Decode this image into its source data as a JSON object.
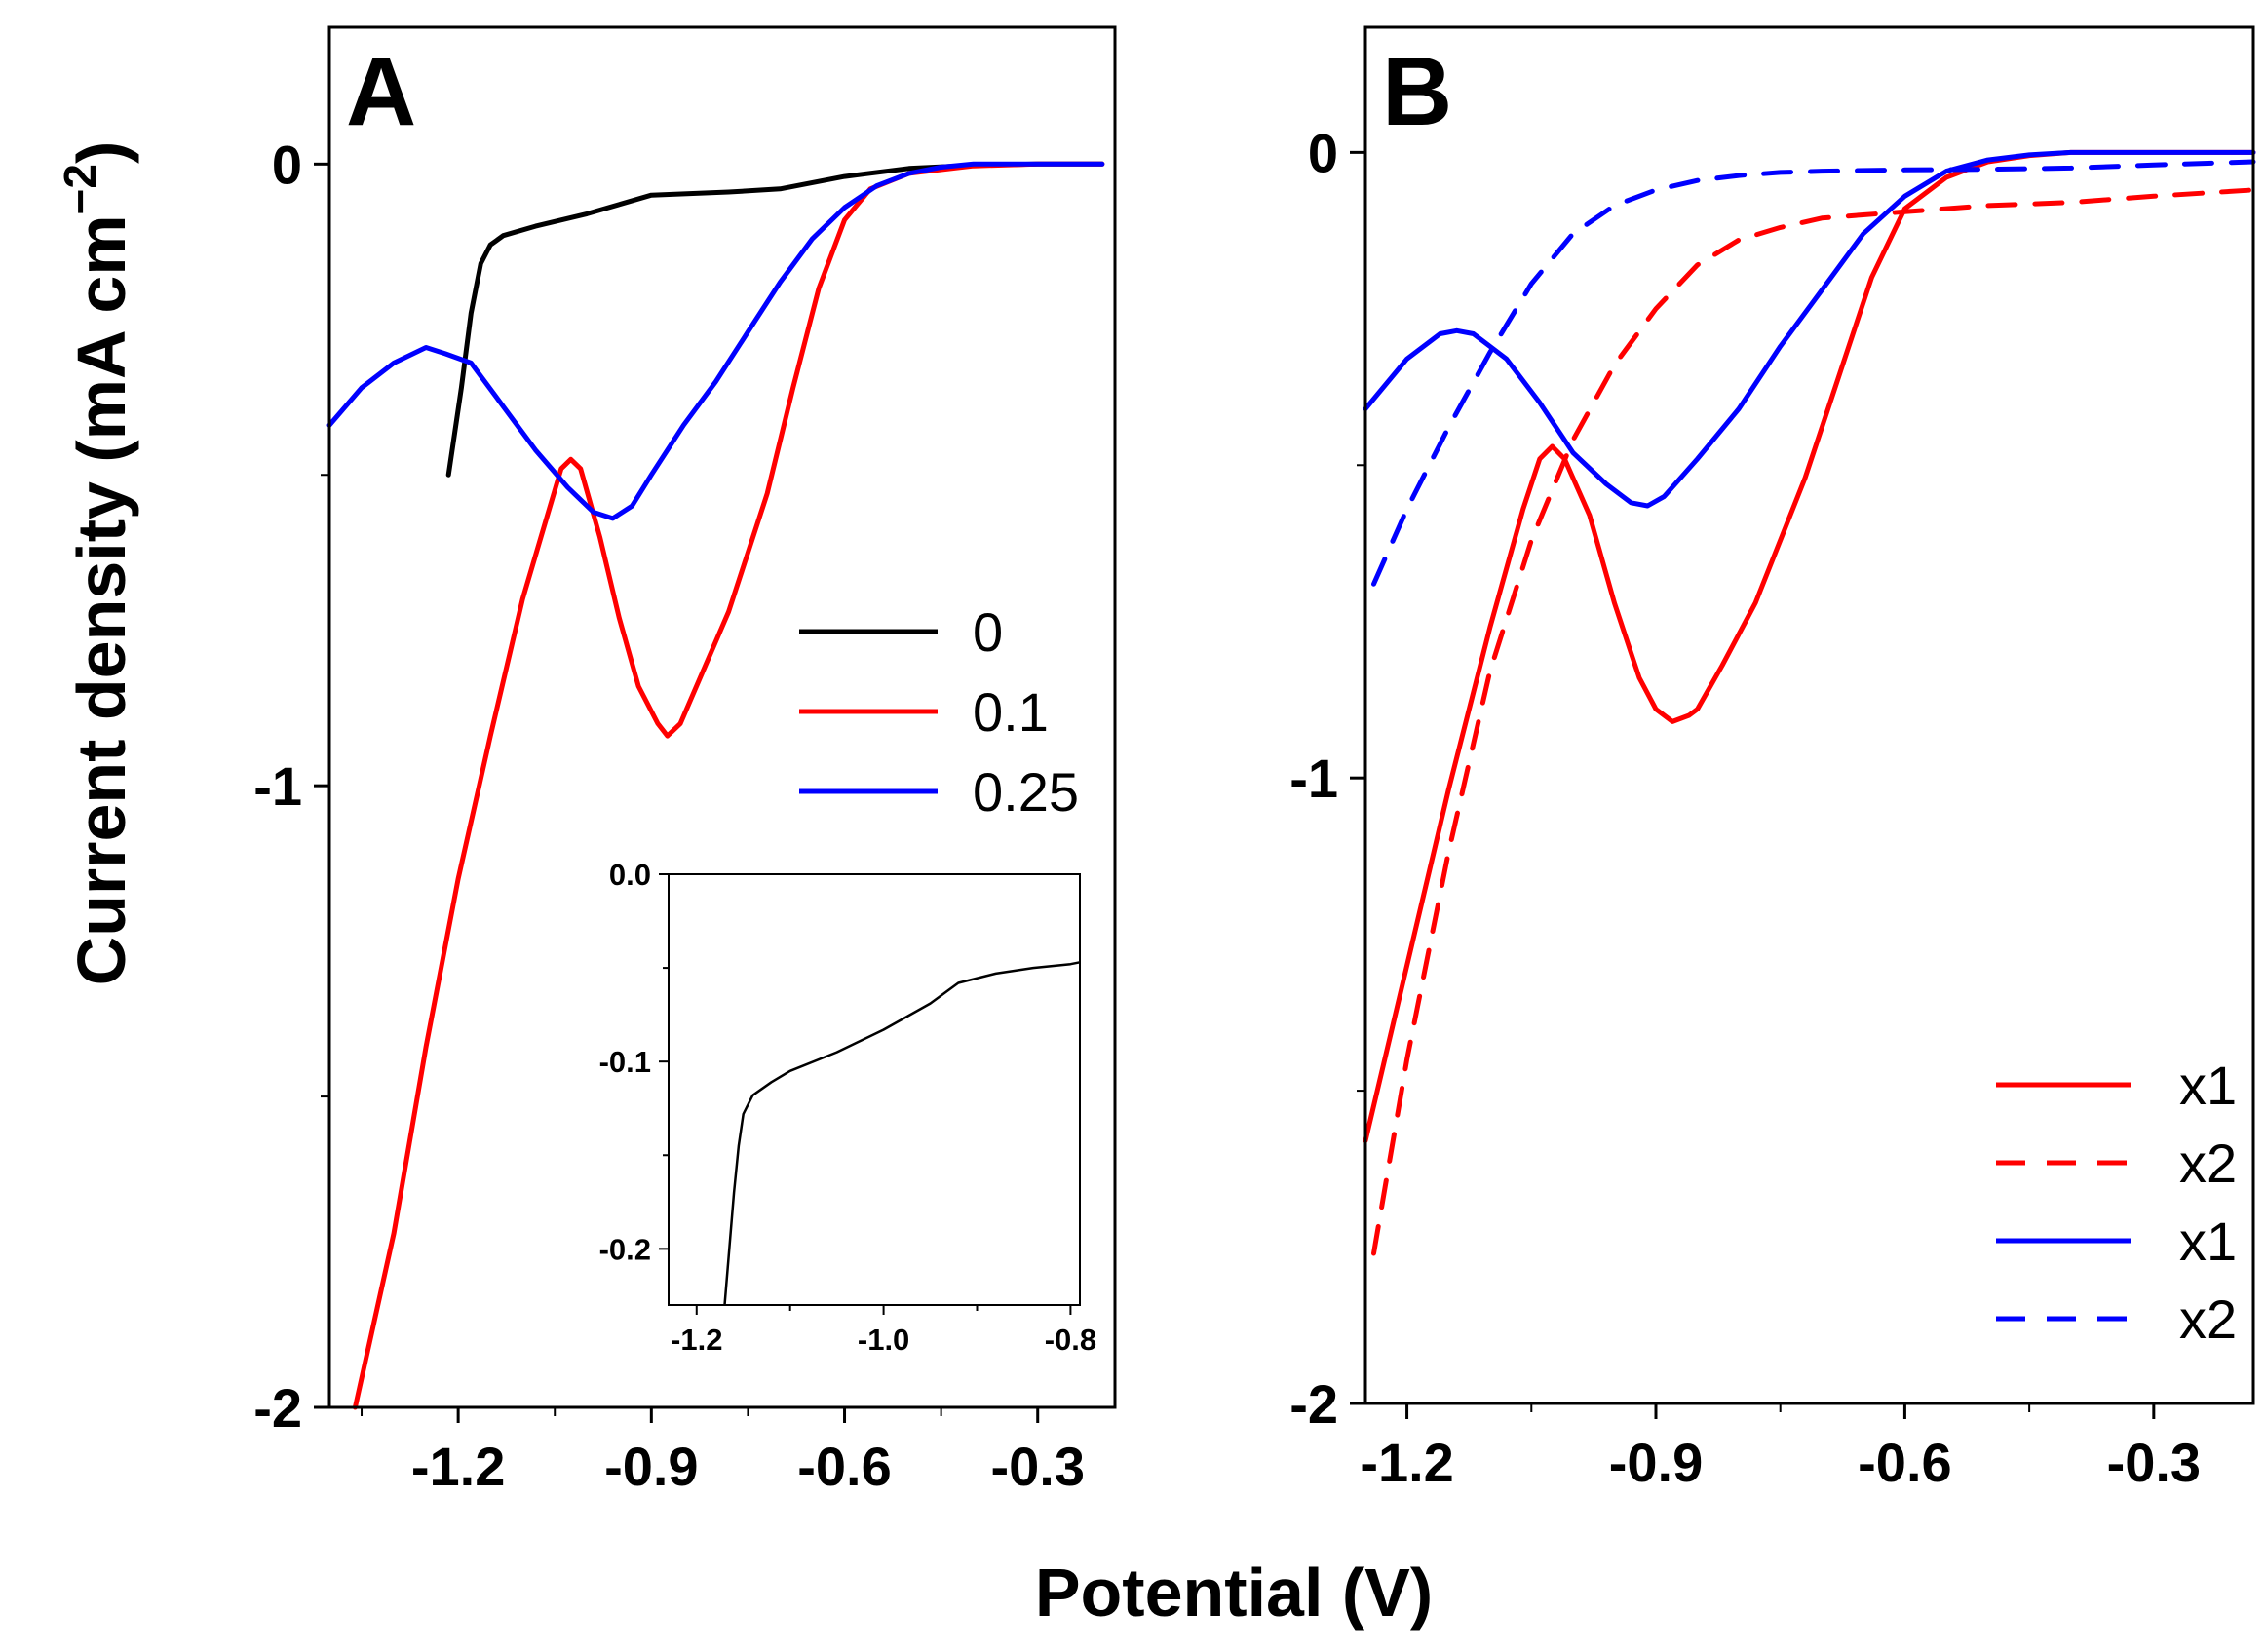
{
  "figure": {
    "xlabel": "Potential (V)",
    "ylabel_main": "Current density (mA cm",
    "ylabel_sup": "−2",
    "ylabel_close": ")"
  },
  "chart_data": [
    {
      "id": "A",
      "type": "line",
      "panel_label": "A",
      "xlim": [
        -1.4,
        -0.18
      ],
      "ylim": [
        -2.0,
        0.22
      ],
      "xticks": [
        -1.2,
        -0.9,
        -0.6,
        -0.3
      ],
      "xtick_labels": [
        "-1.2",
        "-0.9",
        "-0.6",
        "-0.3"
      ],
      "yticks": [
        0,
        -1,
        -2
      ],
      "ytick_labels": [
        "0",
        "-1",
        "-2"
      ],
      "legend": {
        "position": "center-right"
      },
      "series": [
        {
          "name": "0",
          "color": "#000000",
          "dash": "solid",
          "x": [
            -1.215,
            -1.195,
            -1.18,
            -1.165,
            -1.15,
            -1.13,
            -1.08,
            -1.0,
            -0.9,
            -0.78,
            -0.7,
            -0.6,
            -0.5,
            -0.4,
            -0.3,
            -0.2
          ],
          "y": [
            -0.5,
            -0.36,
            -0.24,
            -0.16,
            -0.13,
            -0.115,
            -0.1,
            -0.08,
            -0.05,
            -0.045,
            -0.04,
            -0.02,
            -0.007,
            -0.002,
            0.0,
            0.0
          ]
        },
        {
          "name": "0.1",
          "color": "#ff0000",
          "dash": "solid",
          "x": [
            -1.36,
            -1.3,
            -1.25,
            -1.2,
            -1.15,
            -1.1,
            -1.06,
            -1.04,
            -1.025,
            -1.01,
            -0.98,
            -0.95,
            -0.92,
            -0.89,
            -0.875,
            -0.855,
            -0.83,
            -0.78,
            -0.72,
            -0.68,
            -0.64,
            -0.6,
            -0.56,
            -0.5,
            -0.4,
            -0.3,
            -0.2
          ],
          "y": [
            -2.0,
            -1.72,
            -1.42,
            -1.15,
            -0.92,
            -0.7,
            -0.56,
            -0.49,
            -0.475,
            -0.49,
            -0.6,
            -0.73,
            -0.84,
            -0.9,
            -0.92,
            -0.9,
            -0.84,
            -0.72,
            -0.53,
            -0.36,
            -0.2,
            -0.09,
            -0.04,
            -0.015,
            -0.003,
            0.0,
            0.0
          ]
        },
        {
          "name": "0.25",
          "color": "#0000ff",
          "dash": "solid",
          "x": [
            -1.4,
            -1.35,
            -1.3,
            -1.25,
            -1.22,
            -1.18,
            -1.13,
            -1.08,
            -1.03,
            -0.99,
            -0.96,
            -0.93,
            -0.9,
            -0.85,
            -0.8,
            -0.75,
            -0.7,
            -0.65,
            -0.6,
            -0.55,
            -0.5,
            -0.45,
            -0.4,
            -0.3,
            -0.2
          ],
          "y": [
            -0.42,
            -0.36,
            -0.32,
            -0.295,
            -0.305,
            -0.32,
            -0.39,
            -0.46,
            -0.52,
            -0.56,
            -0.57,
            -0.55,
            -0.5,
            -0.42,
            -0.35,
            -0.27,
            -0.19,
            -0.12,
            -0.07,
            -0.035,
            -0.015,
            -0.005,
            0.0,
            0.0,
            0.0
          ]
        }
      ],
      "inset": {
        "xlim": [
          -1.23,
          -0.79
        ],
        "ylim": [
          -0.23,
          0.0
        ],
        "xticks": [
          -1.2,
          -1.0,
          -0.8
        ],
        "xtick_labels": [
          "-1.2",
          "-1.0",
          "-0.8"
        ],
        "yticks": [
          0.0,
          -0.1,
          -0.2
        ],
        "ytick_labels": [
          "0.0",
          "-0.1",
          "-0.2"
        ],
        "series": [
          {
            "name": "0",
            "color": "#000000",
            "x": [
              -1.17,
              -1.165,
              -1.16,
              -1.155,
              -1.15,
              -1.14,
              -1.12,
              -1.1,
              -1.05,
              -1.0,
              -0.95,
              -0.92,
              -0.88,
              -0.84,
              -0.8,
              -0.79
            ],
            "y": [
              -0.23,
              -0.2,
              -0.17,
              -0.145,
              -0.128,
              -0.118,
              -0.111,
              -0.105,
              -0.095,
              -0.083,
              -0.069,
              -0.058,
              -0.053,
              -0.05,
              -0.048,
              -0.047
            ]
          }
        ]
      }
    },
    {
      "id": "B",
      "type": "line",
      "panel_label": "B",
      "xlim": [
        -1.25,
        -0.18
      ],
      "ylim": [
        -2.0,
        0.2
      ],
      "xticks": [
        -1.2,
        -0.9,
        -0.6,
        -0.3
      ],
      "xtick_labels": [
        "-1.2",
        "-0.9",
        "-0.6",
        "-0.3"
      ],
      "yticks": [
        0,
        -1,
        -2
      ],
      "ytick_labels": [
        "0",
        "-1",
        "-2"
      ],
      "legend": {
        "position": "bottom-right"
      },
      "series": [
        {
          "name": "x1",
          "color": "#ff0000",
          "dash": "solid",
          "x": [
            -1.25,
            -1.2,
            -1.15,
            -1.1,
            -1.06,
            -1.04,
            -1.025,
            -1.01,
            -0.98,
            -0.95,
            -0.92,
            -0.9,
            -0.88,
            -0.86,
            -0.85,
            -0.82,
            -0.78,
            -0.72,
            -0.68,
            -0.64,
            -0.6,
            -0.55,
            -0.5,
            -0.45,
            -0.4,
            -0.3,
            -0.18
          ],
          "y": [
            -1.58,
            -1.3,
            -1.02,
            -0.76,
            -0.57,
            -0.49,
            -0.47,
            -0.49,
            -0.58,
            -0.72,
            -0.84,
            -0.89,
            -0.91,
            -0.9,
            -0.89,
            -0.82,
            -0.72,
            -0.52,
            -0.36,
            -0.2,
            -0.09,
            -0.04,
            -0.015,
            -0.005,
            0.0,
            0.0,
            0.0
          ]
        },
        {
          "name": "x2",
          "color": "#ff0000",
          "dash": "dashed",
          "x": [
            -1.24,
            -1.2,
            -1.15,
            -1.1,
            -1.05,
            -1.0,
            -0.95,
            -0.9,
            -0.85,
            -0.8,
            -0.75,
            -0.7,
            -0.65,
            -0.6,
            -0.55,
            -0.5,
            -0.4,
            -0.3,
            -0.18
          ],
          "y": [
            -1.76,
            -1.45,
            -1.12,
            -0.83,
            -0.62,
            -0.46,
            -0.34,
            -0.25,
            -0.18,
            -0.14,
            -0.12,
            -0.105,
            -0.1,
            -0.095,
            -0.09,
            -0.085,
            -0.08,
            -0.07,
            -0.06
          ]
        },
        {
          "name": "x1",
          "color": "#0000ff",
          "dash": "solid",
          "x": [
            -1.25,
            -1.2,
            -1.16,
            -1.14,
            -1.12,
            -1.08,
            -1.04,
            -1.0,
            -0.96,
            -0.93,
            -0.91,
            -0.89,
            -0.85,
            -0.8,
            -0.75,
            -0.7,
            -0.65,
            -0.6,
            -0.55,
            -0.5,
            -0.45,
            -0.4,
            -0.3,
            -0.18
          ],
          "y": [
            -0.41,
            -0.33,
            -0.29,
            -0.285,
            -0.29,
            -0.33,
            -0.4,
            -0.48,
            -0.53,
            -0.56,
            -0.565,
            -0.55,
            -0.49,
            -0.41,
            -0.31,
            -0.22,
            -0.13,
            -0.07,
            -0.03,
            -0.012,
            -0.004,
            0.0,
            0.0,
            0.0
          ]
        },
        {
          "name": "x2",
          "color": "#0000ff",
          "dash": "dashed",
          "x": [
            -1.24,
            -1.2,
            -1.15,
            -1.1,
            -1.05,
            -1.0,
            -0.95,
            -0.9,
            -0.85,
            -0.8,
            -0.75,
            -0.7,
            -0.6,
            -0.5,
            -0.4,
            -0.3,
            -0.18
          ],
          "y": [
            -0.69,
            -0.57,
            -0.44,
            -0.32,
            -0.21,
            -0.13,
            -0.085,
            -0.06,
            -0.045,
            -0.037,
            -0.032,
            -0.03,
            -0.028,
            -0.027,
            -0.025,
            -0.02,
            -0.015
          ]
        }
      ]
    }
  ]
}
